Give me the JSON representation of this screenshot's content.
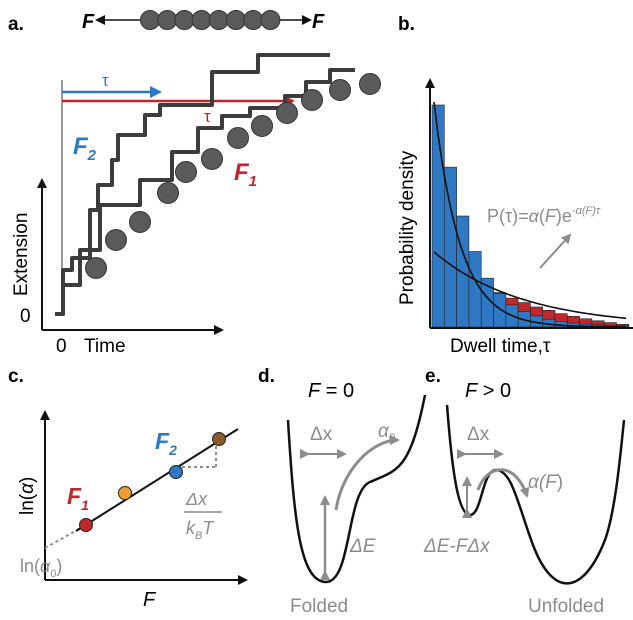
{
  "colors": {
    "force2": "#2e78c4",
    "force1": "#c0272d",
    "bead": "#5a5a5a",
    "trace": "#3c3c3c",
    "hist_blue": "#2e78c4",
    "hist_red": "#c0272d",
    "annot_grey": "#8c8c8c",
    "point_orange": "#f0a030",
    "point_brown": "#8b5a2b"
  },
  "panels": {
    "a": {
      "label": "a.",
      "force_left": "F",
      "force_right": "F",
      "tau": "τ",
      "f2": "F",
      "f2_sub": "2",
      "f1": "F",
      "f1_sub": "1",
      "ylabel": "Extension",
      "xlabel": "Time",
      "y_zero": "0",
      "x_zero": "0"
    },
    "b": {
      "label": "b.",
      "ylabel": "Probability density",
      "xlabel": "Dwell time,τ",
      "formula_prefix": "P(τ)=",
      "formula_alpha": "α",
      "formula_mid": "(",
      "formula_F": "F",
      "formula_close": ")e",
      "formula_exp": "-α(F)τ"
    },
    "c": {
      "label": "c.",
      "ylabel_pre": "ln(",
      "ylabel_alpha": "α",
      "ylabel_post": ")",
      "xlabel": "F",
      "f1": "F",
      "f1_sub": "1",
      "f2": "F",
      "f2_sub": "2",
      "slope_num": "Δx",
      "slope_den_k": "k",
      "slope_den_sub": "B",
      "slope_den_T": "T",
      "intercept_pre": "ln(",
      "intercept_alpha": "α",
      "intercept_sub": "0",
      "intercept_post": ")"
    },
    "d": {
      "label": "d.",
      "title_F": "F",
      "title_rest": " = 0",
      "dx": "Δx",
      "alpha0": "α",
      "alpha0_sub": "0",
      "dE": "ΔE",
      "folded": "Folded"
    },
    "e": {
      "label": "e.",
      "title_F": "F",
      "title_rest": " > 0",
      "dx": "Δx",
      "alphaF_pre": "α(",
      "alphaF_F": "F",
      "alphaF_post": ")",
      "barrier": "ΔE-FΔx",
      "unfolded": "Unfolded"
    }
  },
  "chart_data": {
    "type": "bar",
    "title": "",
    "xlabel": "Dwell time,τ",
    "ylabel": "Probability density",
    "series": [
      {
        "name": "",
        "color": "#2e78c4",
        "values": [
          1.0,
          0.72,
          0.5,
          0.34,
          0.22,
          0.15,
          0.1,
          0.07,
          0.05,
          0.035,
          0.025,
          0.018,
          0.013,
          0.01,
          0.007,
          0.005
        ]
      },
      {
        "name": "",
        "color": "#c0272d",
        "values": [
          0.3,
          0.27,
          0.24,
          0.21,
          0.18,
          0.155,
          0.13,
          0.11,
          0.09,
          0.075,
          0.06,
          0.048,
          0.037,
          0.028,
          0.02,
          0.012
        ]
      }
    ]
  }
}
